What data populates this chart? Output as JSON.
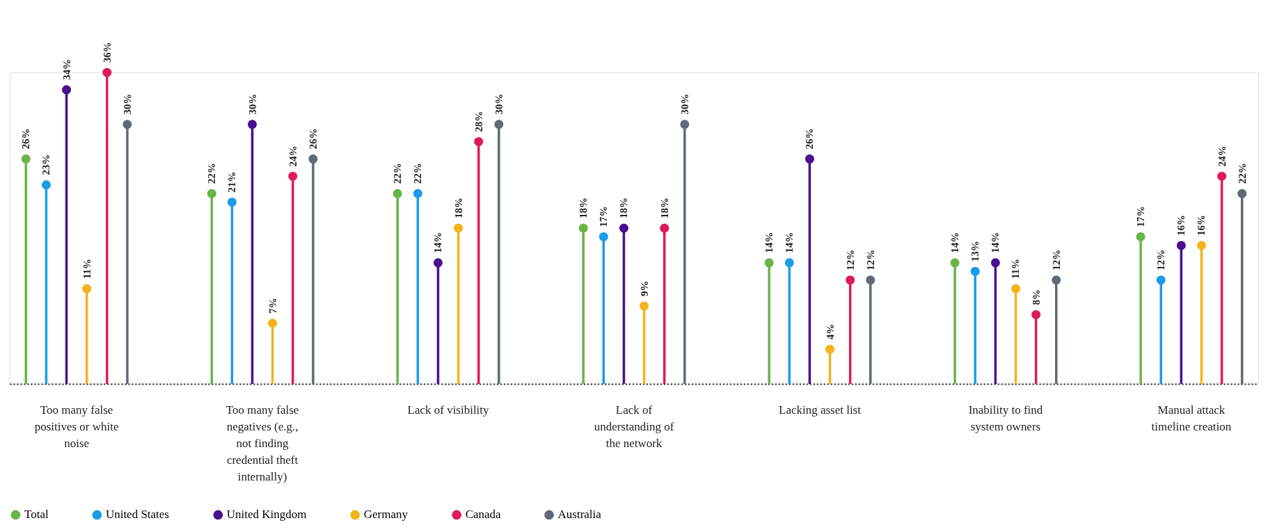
{
  "chart_data": {
    "type": "lollipop",
    "categories": [
      "Too many false positives or white noise",
      "Too many false negatives (e.g., not finding credential theft internally)",
      "Lack of visibility",
      "Lack of understanding of the network",
      "Lacking asset list",
      "Inability to find system owners",
      "Manual attack timeline creation"
    ],
    "series": [
      {
        "name": "Total",
        "color": "#6ab446",
        "values": [
          26,
          22,
          22,
          18,
          14,
          14,
          17
        ],
        "value_labels": [
          "26%",
          "22%",
          "22%",
          "18%",
          "14%",
          "14%",
          "17%"
        ]
      },
      {
        "name": "United States",
        "color": "#1a9ce8",
        "values": [
          23,
          21,
          22,
          17,
          14,
          13,
          12
        ],
        "value_labels": [
          "23%",
          "21%",
          "22%",
          "17%",
          "14%",
          "13%",
          "12%"
        ]
      },
      {
        "name": "United Kingdom",
        "color": "#4a0e8f",
        "values": [
          34,
          30,
          14,
          18,
          26,
          14,
          16
        ],
        "value_labels": [
          "34%",
          "30%",
          "14%",
          "18%",
          "26%",
          "14%",
          "16%"
        ]
      },
      {
        "name": "Germany",
        "color": "#f5b31b",
        "values": [
          11,
          7,
          18,
          9,
          4,
          11,
          16
        ],
        "value_labels": [
          "11%",
          "7%",
          "18%",
          "9%",
          "4%",
          "11%",
          "16%"
        ]
      },
      {
        "name": "Canada",
        "color": "#e0195c",
        "values": [
          36,
          24,
          28,
          18,
          12,
          8,
          24
        ],
        "value_labels": [
          "36%",
          "24%",
          "28%",
          "18%",
          "12%",
          "8%",
          "24%"
        ]
      },
      {
        "name": "Australia",
        "color": "#5f6a78",
        "values": [
          30,
          26,
          30,
          30,
          12,
          12,
          22
        ],
        "value_labels": [
          "30%",
          "26%",
          "30%",
          "30%",
          "12%",
          "12%",
          "22%"
        ]
      }
    ],
    "legend": "bottom left",
    "grid": false,
    "marker": "circle"
  }
}
